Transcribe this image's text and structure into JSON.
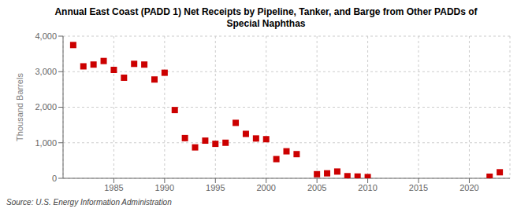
{
  "chart_data": {
    "type": "scatter",
    "title": "Annual East Coast (PADD 1) Net Receipts by Pipeline, Tanker, and Barge from Other PADDs of\nSpecial Naphthas",
    "ylabel": "Thousand Barrels",
    "annotations": [
      "Source: U.S. Energy Information Administration"
    ],
    "x": [
      1981,
      1982,
      1983,
      1984,
      1985,
      1986,
      1987,
      1988,
      1989,
      1990,
      1991,
      1992,
      1993,
      1994,
      1995,
      1996,
      1997,
      1998,
      1999,
      2000,
      2001,
      2002,
      2003,
      2005,
      2006,
      2007,
      2008,
      2009,
      2010,
      2022,
      2023
    ],
    "values": [
      3750,
      3150,
      3200,
      3300,
      3050,
      2830,
      3220,
      3200,
      2780,
      2970,
      1920,
      1130,
      870,
      1060,
      970,
      1000,
      1560,
      1250,
      1120,
      1100,
      540,
      760,
      680,
      115,
      140,
      190,
      60,
      50,
      35,
      45,
      170
    ],
    "color": "#cc0000",
    "marker": "square",
    "xlim": [
      1980,
      2024
    ],
    "xticks": [
      1985,
      1990,
      1995,
      2000,
      2005,
      2010,
      2015,
      2020
    ],
    "ylim": [
      0,
      4000
    ],
    "yticks": [
      0,
      {
        "value": 1000,
        "label": "1,000"
      },
      {
        "value": 2000,
        "label": "2,000"
      },
      {
        "value": 3000,
        "label": "3,000"
      },
      {
        "value": 4000,
        "label": "4,000"
      }
    ],
    "grid": true
  }
}
